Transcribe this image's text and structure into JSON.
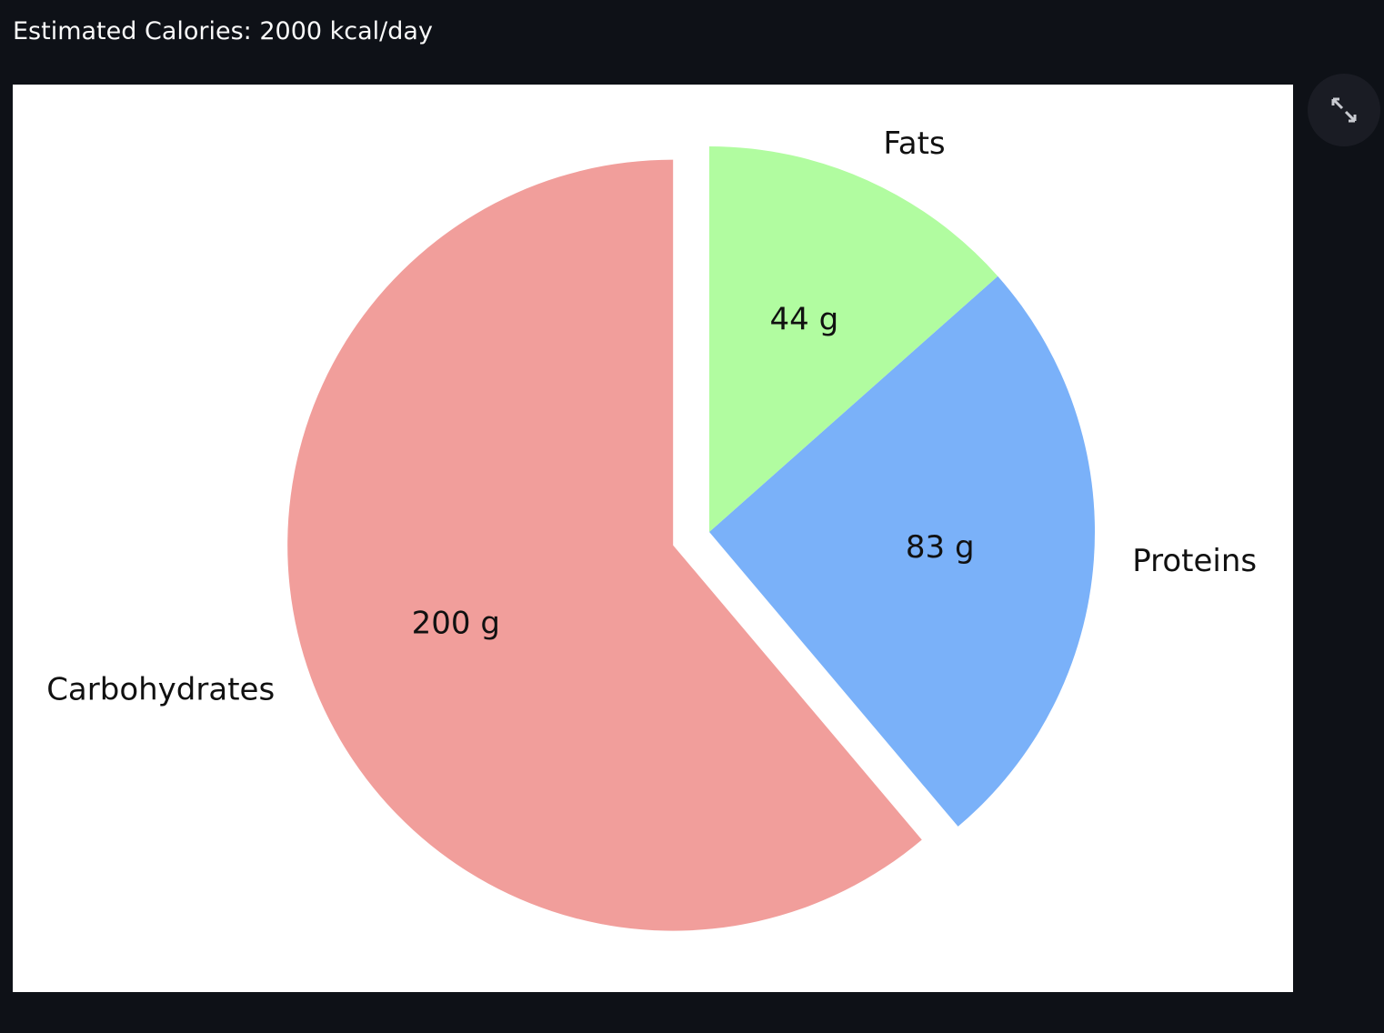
{
  "page": {
    "header": "Estimated Calories: 2000 kcal/day"
  },
  "chart_data": {
    "type": "pie",
    "categories": [
      "Carbohydrates",
      "Proteins",
      "Fats"
    ],
    "values": [
      200,
      83,
      44
    ],
    "value_labels": [
      "200 g",
      "83 g",
      "44 g"
    ],
    "colors": [
      "#f19e9b",
      "#7ab1f9",
      "#b1fca0"
    ],
    "explode": [
      0.1,
      0,
      0
    ],
    "startangle": 90
  }
}
